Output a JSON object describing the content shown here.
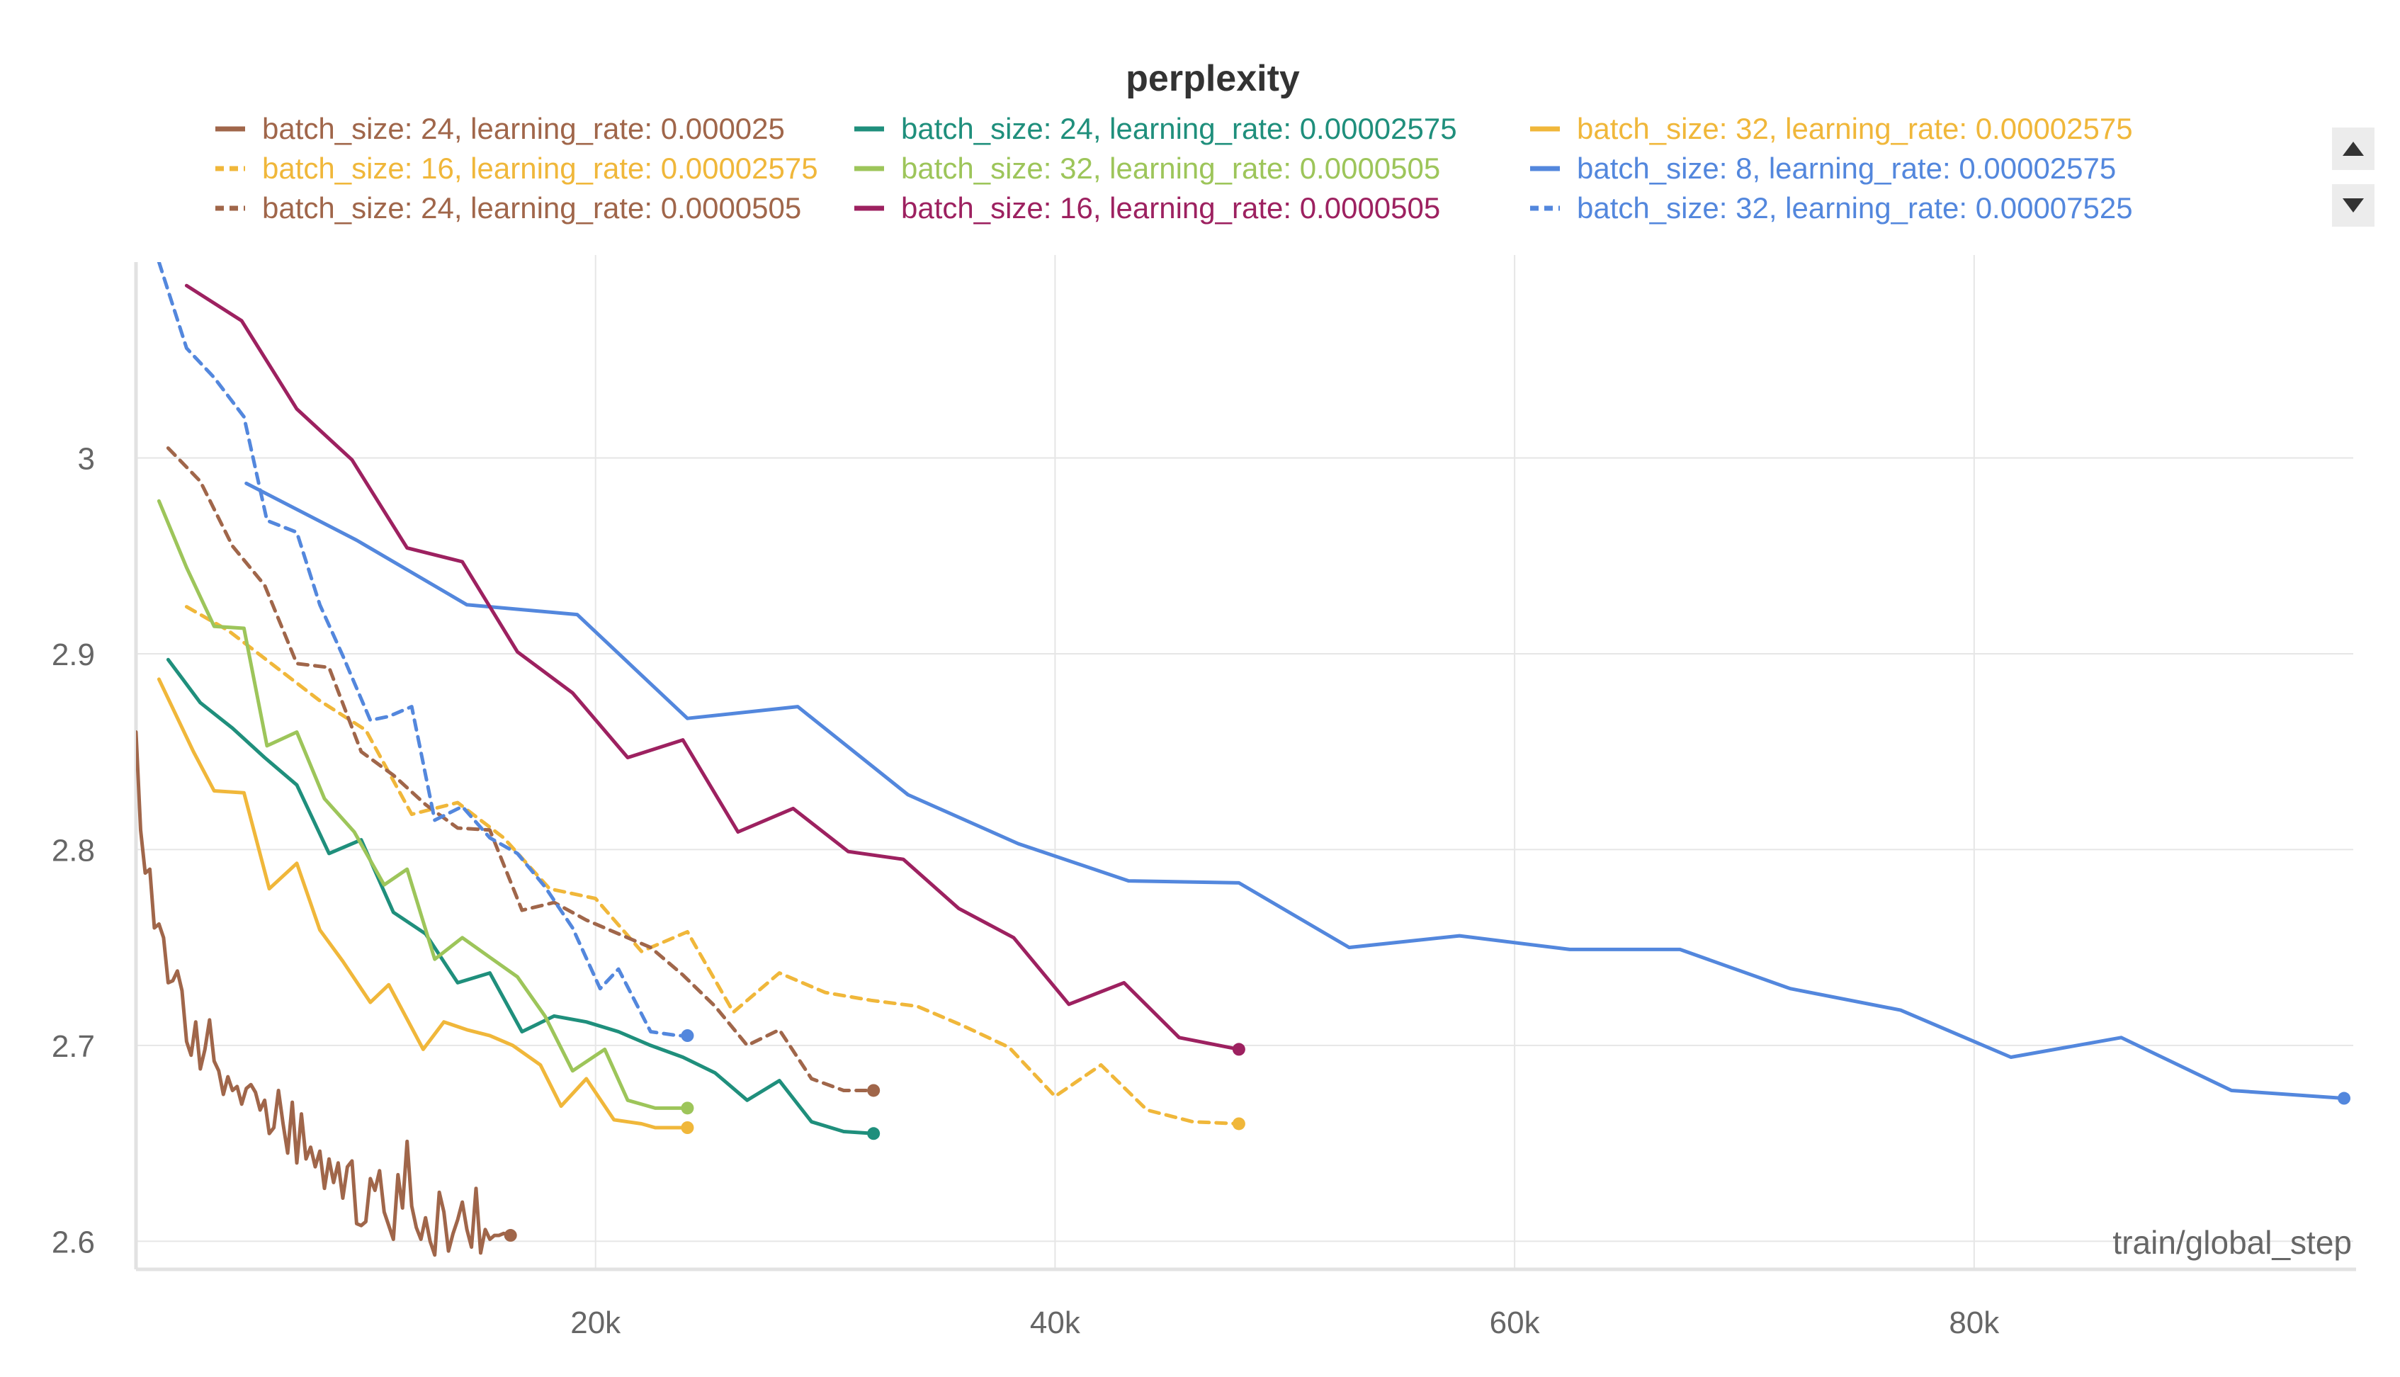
{
  "chart_data": {
    "type": "line",
    "title": "perplexity",
    "xlabel": "train/global_step",
    "ylabel": "",
    "xlim": [
      0,
      96500
    ],
    "ylim": [
      2.59,
      3.1
    ],
    "x_ticks": [
      20000,
      40000,
      60000,
      80000
    ],
    "x_tick_labels": [
      "20k",
      "40k",
      "60k",
      "80k"
    ],
    "y_ticks": [
      2.6,
      2.7,
      2.8,
      2.9,
      3.0
    ],
    "y_tick_labels": [
      "2.6",
      "2.7",
      "2.8",
      "2.9",
      "3"
    ],
    "grid": true,
    "legend_position": "top",
    "series": [
      {
        "name": "batch_size: 24, learning_rate: 0.000025",
        "color": "#a0664a",
        "dashed": false,
        "x": [
          0,
          200,
          400,
          600,
          800,
          1000,
          1200,
          1400,
          1600,
          1800,
          2000,
          2200,
          2400,
          2600,
          2800,
          3000,
          3200,
          3400,
          3600,
          3800,
          4000,
          4200,
          4400,
          4600,
          4800,
          5000,
          5200,
          5400,
          5600,
          5800,
          6000,
          6200,
          6400,
          6600,
          6800,
          7000,
          7200,
          7400,
          7600,
          7800,
          8000,
          8200,
          8400,
          8600,
          8800,
          9000,
          9200,
          9400,
          9600,
          9800,
          10000,
          10200,
          10400,
          10600,
          10800,
          11000,
          11200,
          11400,
          11600,
          11800,
          12000,
          12200,
          12400,
          12600,
          12800,
          13000,
          13200,
          13400,
          13600,
          13800,
          14000,
          14200,
          14400,
          14600,
          14800,
          15000,
          15200,
          15400,
          15600,
          15800,
          16000,
          16300
        ],
        "y": [
          2.86,
          2.81,
          2.788,
          2.79,
          2.76,
          2.762,
          2.755,
          2.732,
          2.733,
          2.738,
          2.728,
          2.702,
          2.695,
          2.712,
          2.688,
          2.698,
          2.713,
          2.692,
          2.687,
          2.675,
          2.684,
          2.677,
          2.679,
          2.67,
          2.678,
          2.68,
          2.676,
          2.667,
          2.672,
          2.655,
          2.658,
          2.677,
          2.66,
          2.645,
          2.671,
          2.64,
          2.665,
          2.642,
          2.648,
          2.638,
          2.646,
          2.627,
          2.642,
          2.63,
          2.64,
          2.622,
          2.638,
          2.641,
          2.609,
          2.608,
          2.61,
          2.632,
          2.626,
          2.636,
          2.615,
          2.608,
          2.601,
          2.634,
          2.617,
          2.651,
          2.618,
          2.607,
          2.601,
          2.612,
          2.6,
          2.593,
          2.625,
          2.615,
          2.595,
          2.604,
          2.611,
          2.62,
          2.606,
          2.597,
          2.627,
          2.594,
          2.606,
          2.601,
          2.603,
          2.603,
          2.604,
          2.603
        ]
      },
      {
        "name": "batch_size: 24, learning_rate: 0.00002575",
        "color": "#1f8f7c",
        "dashed": false,
        "x": [
          1400,
          2800,
          4200,
          5600,
          7000,
          8400,
          9800,
          11200,
          12600,
          14000,
          15400,
          16800,
          18200,
          19600,
          21000,
          22400,
          23800,
          25200,
          26600,
          28000,
          29400,
          30800,
          32100
        ],
        "y": [
          2.897,
          2.875,
          2.862,
          2.847,
          2.833,
          2.798,
          2.805,
          2.768,
          2.757,
          2.732,
          2.737,
          2.707,
          2.715,
          2.712,
          2.707,
          2.7,
          2.694,
          2.686,
          2.672,
          2.682,
          2.661,
          2.656,
          2.655
        ]
      },
      {
        "name": "batch_size: 32, learning_rate: 0.00002575",
        "color": "#f0b73a",
        "dashed": false,
        "x": [
          1000,
          2500,
          3400,
          4700,
          5800,
          7000,
          8000,
          9000,
          10200,
          11000,
          12500,
          13400,
          14400,
          15400,
          16400,
          17600,
          18500,
          19600,
          20800,
          22000,
          22600,
          24000
        ],
        "y": [
          2.887,
          2.85,
          2.83,
          2.829,
          2.78,
          2.793,
          2.759,
          2.743,
          2.722,
          2.731,
          2.698,
          2.712,
          2.708,
          2.705,
          2.7,
          2.69,
          2.669,
          2.683,
          2.662,
          2.66,
          2.658,
          2.658
        ]
      },
      {
        "name": "batch_size: 16, learning_rate: 0.00002575",
        "color": "#f0b73a",
        "dashed": true,
        "x": [
          2200,
          4000,
          6000,
          8000,
          10000,
          12000,
          14000,
          16000,
          18000,
          20000,
          22000,
          24000,
          26000,
          28000,
          30000,
          32000,
          34000,
          36000,
          38000,
          40000,
          42000,
          44000,
          46000,
          48000
        ],
        "y": [
          2.924,
          2.912,
          2.894,
          2.876,
          2.861,
          2.818,
          2.824,
          2.806,
          2.78,
          2.775,
          2.748,
          2.758,
          2.717,
          2.737,
          2.727,
          2.723,
          2.72,
          2.71,
          2.699,
          2.674,
          2.69,
          2.667,
          2.661,
          2.66
        ]
      },
      {
        "name": "batch_size: 32, learning_rate: 0.0000505",
        "color": "#9dc55a",
        "dashed": false,
        "x": [
          1000,
          2200,
          3400,
          4700,
          5700,
          7000,
          8200,
          9500,
          10800,
          11800,
          13000,
          14200,
          15400,
          16600,
          17800,
          19000,
          20400,
          21400,
          22600,
          24000
        ],
        "y": [
          2.978,
          2.944,
          2.914,
          2.913,
          2.853,
          2.86,
          2.826,
          2.809,
          2.782,
          2.79,
          2.744,
          2.755,
          2.745,
          2.735,
          2.715,
          2.687,
          2.698,
          2.672,
          2.668,
          2.668
        ]
      },
      {
        "name": "batch_size: 8, learning_rate: 0.00002575",
        "color": "#5387dd",
        "dashed": false,
        "x": [
          4800,
          9600,
          14400,
          19200,
          24000,
          28800,
          33600,
          38400,
          43200,
          48000,
          52800,
          57600,
          62400,
          67200,
          72000,
          76800,
          81600,
          86400,
          91200,
          96100
        ],
        "y": [
          2.987,
          2.958,
          2.925,
          2.92,
          2.867,
          2.873,
          2.828,
          2.803,
          2.784,
          2.783,
          2.75,
          2.756,
          2.749,
          2.749,
          2.729,
          2.718,
          2.694,
          2.704,
          2.677,
          2.673
        ]
      },
      {
        "name": "batch_size: 24, learning_rate: 0.0000505",
        "color": "#a0664a",
        "dashed": true,
        "x": [
          1400,
          2800,
          4200,
          5600,
          7000,
          8400,
          9800,
          11200,
          12600,
          14000,
          15400,
          16800,
          18200,
          19600,
          21000,
          22400,
          23800,
          25200,
          26600,
          28000,
          29400,
          30800,
          32100
        ],
        "y": [
          3.005,
          2.988,
          2.955,
          2.935,
          2.895,
          2.893,
          2.85,
          2.838,
          2.823,
          2.811,
          2.81,
          2.769,
          2.773,
          2.764,
          2.757,
          2.75,
          2.736,
          2.72,
          2.7,
          2.708,
          2.683,
          2.677,
          2.677
        ]
      },
      {
        "name": "batch_size: 16, learning_rate: 0.0000505",
        "color": "#9d2160",
        "dashed": false,
        "x": [
          2200,
          4600,
          7000,
          9400,
          11800,
          14200,
          16600,
          19000,
          21400,
          23800,
          26200,
          28600,
          31000,
          33400,
          35800,
          38200,
          40600,
          43000,
          45400,
          48000
        ],
        "y": [
          3.088,
          3.07,
          3.025,
          2.999,
          2.954,
          2.947,
          2.901,
          2.88,
          2.847,
          2.856,
          2.809,
          2.821,
          2.799,
          2.795,
          2.77,
          2.755,
          2.721,
          2.732,
          2.704,
          2.698
        ]
      },
      {
        "name": "batch_size: 32, learning_rate: 0.00007525",
        "color": "#5387dd",
        "dashed": true,
        "x": [
          1000,
          2200,
          3400,
          4700,
          5700,
          7000,
          8000,
          9000,
          10200,
          11000,
          12000,
          13000,
          14200,
          15400,
          16600,
          17800,
          19000,
          20200,
          21000,
          22400,
          23600,
          24000
        ],
        "y": [
          3.1,
          3.056,
          3.041,
          3.021,
          2.968,
          2.962,
          2.925,
          2.899,
          2.866,
          2.868,
          2.873,
          2.815,
          2.822,
          2.806,
          2.798,
          2.781,
          2.76,
          2.729,
          2.739,
          2.707,
          2.705,
          2.705
        ]
      }
    ]
  },
  "ui": {
    "scroll_up_icon": "triangle-up",
    "scroll_down_icon": "triangle-down"
  }
}
